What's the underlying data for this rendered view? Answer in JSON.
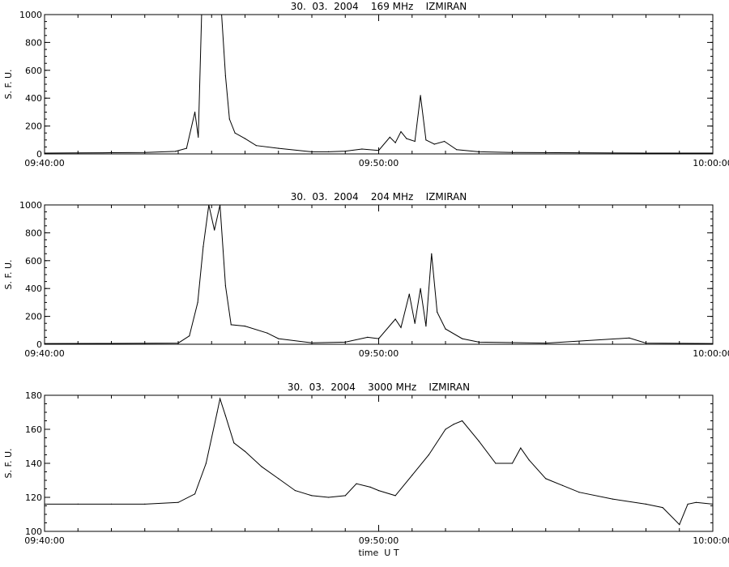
{
  "chart_data": [
    {
      "type": "line",
      "title": "30.  03.  2004    169 MHz    IZMIRAN",
      "ylabel": "S. F. U.",
      "xlabel": "",
      "xlim": [
        "09:40:00",
        "10:00:00"
      ],
      "ylim": [
        0,
        1000
      ],
      "x_ticks": [
        "09:40:00",
        "09:50:00",
        "10:00:00"
      ],
      "y_ticks": [
        "0",
        "200",
        "400",
        "600",
        "800",
        "1000"
      ],
      "grid": false,
      "series": [
        {
          "points": [
            [
              "09:40:00",
              6
            ],
            [
              "09:41:00",
              7
            ],
            [
              "09:42:00",
              9
            ],
            [
              "09:43:00",
              10
            ],
            [
              "09:43:55",
              18
            ],
            [
              "09:44:15",
              40
            ],
            [
              "09:44:30",
              300
            ],
            [
              "09:44:36",
              120
            ],
            [
              "09:44:42",
              1000
            ],
            [
              "09:45:18",
              1000
            ],
            [
              "09:45:25",
              560
            ],
            [
              "09:45:32",
              250
            ],
            [
              "09:45:42",
              150
            ],
            [
              "09:46:00",
              110
            ],
            [
              "09:46:20",
              60
            ],
            [
              "09:47:00",
              40
            ],
            [
              "09:48:00",
              15
            ],
            [
              "09:48:30",
              15
            ],
            [
              "09:49:00",
              20
            ],
            [
              "09:49:30",
              35
            ],
            [
              "09:50:00",
              25
            ],
            [
              "09:50:20",
              120
            ],
            [
              "09:50:30",
              80
            ],
            [
              "09:50:40",
              160
            ],
            [
              "09:50:50",
              110
            ],
            [
              "09:51:05",
              90
            ],
            [
              "09:51:15",
              420
            ],
            [
              "09:51:25",
              100
            ],
            [
              "09:51:40",
              70
            ],
            [
              "09:51:58",
              90
            ],
            [
              "09:52:20",
              30
            ],
            [
              "09:53:00",
              15
            ],
            [
              "09:54:00",
              10
            ],
            [
              "09:56:00",
              8
            ],
            [
              "09:58:00",
              6
            ],
            [
              "10:00:00",
              6
            ]
          ]
        }
      ]
    },
    {
      "type": "line",
      "title": "30.  03.  2004    204 MHz    IZMIRAN",
      "ylabel": "S. F. U.",
      "xlabel": "",
      "xlim": [
        "09:40:00",
        "10:00:00"
      ],
      "ylim": [
        0,
        1000
      ],
      "x_ticks": [
        "09:40:00",
        "09:50:00",
        "10:00:00"
      ],
      "y_ticks": [
        "0",
        "200",
        "400",
        "600",
        "800",
        "1000"
      ],
      "grid": false,
      "series": [
        {
          "points": [
            [
              "09:40:00",
              5
            ],
            [
              "09:42:00",
              6
            ],
            [
              "09:44:00",
              8
            ],
            [
              "09:44:20",
              60
            ],
            [
              "09:44:35",
              300
            ],
            [
              "09:44:45",
              700
            ],
            [
              "09:44:55",
              1000
            ],
            [
              "09:45:05",
              820
            ],
            [
              "09:45:15",
              1000
            ],
            [
              "09:45:25",
              420
            ],
            [
              "09:45:35",
              140
            ],
            [
              "09:46:00",
              130
            ],
            [
              "09:46:40",
              80
            ],
            [
              "09:47:00",
              40
            ],
            [
              "09:48:00",
              10
            ],
            [
              "09:49:00",
              15
            ],
            [
              "09:49:40",
              50
            ],
            [
              "09:50:00",
              40
            ],
            [
              "09:50:30",
              180
            ],
            [
              "09:50:40",
              120
            ],
            [
              "09:50:55",
              360
            ],
            [
              "09:51:05",
              150
            ],
            [
              "09:51:15",
              400
            ],
            [
              "09:51:25",
              130
            ],
            [
              "09:51:35",
              650
            ],
            [
              "09:51:45",
              230
            ],
            [
              "09:52:00",
              110
            ],
            [
              "09:52:30",
              40
            ],
            [
              "09:53:00",
              15
            ],
            [
              "09:55:00",
              8
            ],
            [
              "09:57:30",
              45
            ],
            [
              "09:58:00",
              8
            ],
            [
              "10:00:00",
              5
            ]
          ]
        }
      ]
    },
    {
      "type": "line",
      "title": "30.  03.  2004    3000 MHz    IZMIRAN",
      "ylabel": "S. F. U.",
      "xlabel": "time  U T",
      "xlim": [
        "09:40:00",
        "10:00:00"
      ],
      "ylim": [
        100,
        180
      ],
      "x_ticks": [
        "09:40:00",
        "09:50:00",
        "10:00:00"
      ],
      "y_ticks": [
        "100",
        "120",
        "140",
        "160",
        "180"
      ],
      "grid": false,
      "series": [
        {
          "points": [
            [
              "09:40:00",
              116
            ],
            [
              "09:41:00",
              116
            ],
            [
              "09:42:00",
              116
            ],
            [
              "09:43:00",
              116
            ],
            [
              "09:44:00",
              117
            ],
            [
              "09:44:30",
              122
            ],
            [
              "09:44:50",
              140
            ],
            [
              "09:45:10",
              170
            ],
            [
              "09:45:15",
              178
            ],
            [
              "09:45:25",
              168
            ],
            [
              "09:45:40",
              152
            ],
            [
              "09:46:00",
              147
            ],
            [
              "09:46:30",
              138
            ],
            [
              "09:47:00",
              131
            ],
            [
              "09:47:30",
              124
            ],
            [
              "09:48:00",
              121
            ],
            [
              "09:48:30",
              120
            ],
            [
              "09:49:00",
              121
            ],
            [
              "09:49:20",
              128
            ],
            [
              "09:49:45",
              126
            ],
            [
              "09:50:00",
              124
            ],
            [
              "09:50:30",
              121
            ],
            [
              "09:51:00",
              133
            ],
            [
              "09:51:30",
              145
            ],
            [
              "09:52:00",
              160
            ],
            [
              "09:52:15",
              163
            ],
            [
              "09:52:30",
              165
            ],
            [
              "09:53:00",
              153
            ],
            [
              "09:53:30",
              140
            ],
            [
              "09:54:00",
              140
            ],
            [
              "09:54:15",
              149
            ],
            [
              "09:54:30",
              142
            ],
            [
              "09:55:00",
              131
            ],
            [
              "09:55:30",
              127
            ],
            [
              "09:56:00",
              123
            ],
            [
              "09:57:00",
              119
            ],
            [
              "09:58:00",
              116
            ],
            [
              "09:58:30",
              114
            ],
            [
              "09:59:00",
              104
            ],
            [
              "09:59:15",
              116
            ],
            [
              "09:59:30",
              117
            ],
            [
              "10:00:00",
              116
            ]
          ]
        }
      ]
    }
  ]
}
